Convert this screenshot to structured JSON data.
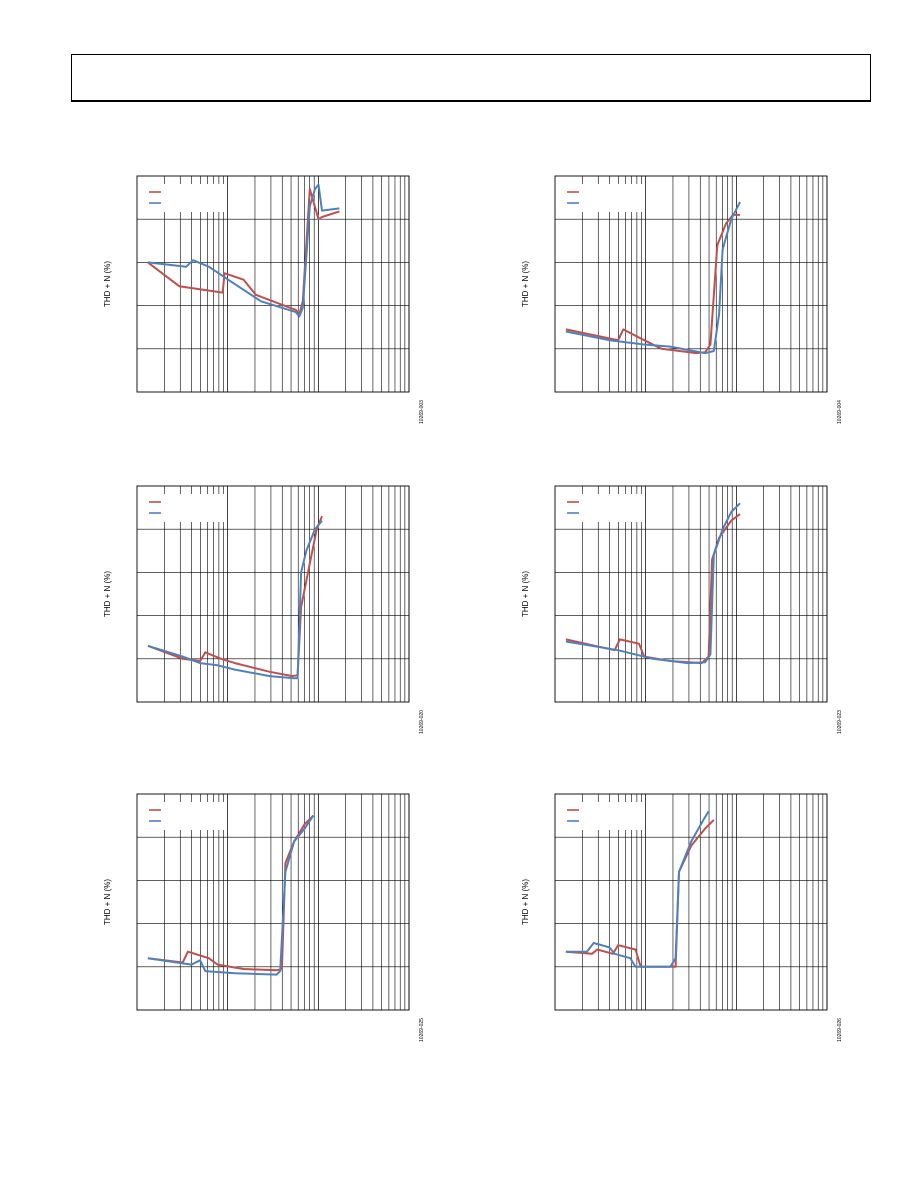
{
  "header": {
    "title": ""
  },
  "colors": {
    "red": "#c0504d",
    "blue": "#4f81bd",
    "grid": "#000000"
  },
  "chart_data": [
    {
      "type": "line",
      "ylabel": "THD + N (%)",
      "figure_id": "10269-003",
      "log_x": true,
      "x_decades": 3,
      "y_divisions": 5,
      "grid": true,
      "legend": "top-left",
      "series": [
        {
          "color": "red",
          "points": [
            [
              0.0,
              3.0
            ],
            [
              0.18,
              2.45
            ],
            [
              0.43,
              2.3
            ],
            [
              0.44,
              2.75
            ],
            [
              0.55,
              2.6
            ],
            [
              0.62,
              2.25
            ],
            [
              0.85,
              1.9
            ],
            [
              0.87,
              1.8
            ],
            [
              0.89,
              2.1
            ],
            [
              0.93,
              4.7
            ],
            [
              0.98,
              4.0
            ],
            [
              1.0,
              4.05
            ],
            [
              1.1,
              4.18
            ]
          ]
        },
        {
          "color": "blue",
          "points": [
            [
              0.0,
              3.0
            ],
            [
              0.22,
              2.9
            ],
            [
              0.26,
              3.05
            ],
            [
              0.35,
              2.9
            ],
            [
              0.48,
              2.55
            ],
            [
              0.65,
              2.1
            ],
            [
              0.85,
              1.85
            ],
            [
              0.87,
              1.75
            ],
            [
              0.89,
              1.95
            ],
            [
              0.93,
              4.3
            ],
            [
              0.96,
              4.7
            ],
            [
              0.98,
              4.8
            ],
            [
              1.0,
              4.2
            ],
            [
              1.1,
              4.25
            ]
          ]
        }
      ]
    },
    {
      "type": "line",
      "ylabel": "THD + N (%)",
      "figure_id": "10269-004",
      "log_x": true,
      "x_decades": 3,
      "y_divisions": 5,
      "grid": true,
      "legend": "top-left",
      "series": [
        {
          "color": "red",
          "points": [
            [
              0.0,
              1.45
            ],
            [
              0.3,
              1.2
            ],
            [
              0.33,
              1.45
            ],
            [
              0.45,
              1.2
            ],
            [
              0.55,
              1.0
            ],
            [
              0.75,
              0.9
            ],
            [
              0.8,
              0.92
            ],
            [
              0.83,
              1.1
            ],
            [
              0.87,
              3.4
            ],
            [
              0.92,
              3.9
            ],
            [
              0.96,
              4.1
            ],
            [
              1.0,
              4.1
            ]
          ]
        },
        {
          "color": "blue",
          "points": [
            [
              0.0,
              1.4
            ],
            [
              0.25,
              1.2
            ],
            [
              0.45,
              1.1
            ],
            [
              0.6,
              1.05
            ],
            [
              0.8,
              0.9
            ],
            [
              0.85,
              0.95
            ],
            [
              0.88,
              1.8
            ],
            [
              0.9,
              3.3
            ],
            [
              0.95,
              4.0
            ],
            [
              1.0,
              4.4
            ]
          ]
        }
      ]
    },
    {
      "type": "line",
      "ylabel": "THD + N (%)",
      "figure_id": "10269-020",
      "log_x": true,
      "x_decades": 3,
      "y_divisions": 5,
      "grid": true,
      "legend": "top-left",
      "series": [
        {
          "color": "red",
          "points": [
            [
              0.0,
              1.3
            ],
            [
              0.2,
              1.0
            ],
            [
              0.3,
              0.95
            ],
            [
              0.33,
              1.15
            ],
            [
              0.42,
              1.0
            ],
            [
              0.5,
              0.9
            ],
            [
              0.7,
              0.7
            ],
            [
              0.83,
              0.6
            ],
            [
              0.86,
              0.62
            ],
            [
              0.88,
              2.2
            ],
            [
              0.92,
              3.0
            ],
            [
              0.97,
              4.0
            ],
            [
              1.0,
              4.3
            ]
          ]
        },
        {
          "color": "blue",
          "points": [
            [
              0.0,
              1.3
            ],
            [
              0.2,
              1.05
            ],
            [
              0.3,
              0.9
            ],
            [
              0.4,
              0.85
            ],
            [
              0.5,
              0.75
            ],
            [
              0.7,
              0.6
            ],
            [
              0.84,
              0.55
            ],
            [
              0.86,
              0.55
            ],
            [
              0.88,
              3.0
            ],
            [
              0.91,
              3.5
            ],
            [
              0.96,
              4.0
            ],
            [
              1.0,
              4.2
            ]
          ]
        }
      ]
    },
    {
      "type": "line",
      "ylabel": "THD + N (%)",
      "figure_id": "10269-023",
      "log_x": true,
      "x_decades": 3,
      "y_divisions": 5,
      "grid": true,
      "legend": "top-left",
      "series": [
        {
          "color": "red",
          "points": [
            [
              0.0,
              1.45
            ],
            [
              0.28,
              1.2
            ],
            [
              0.31,
              1.45
            ],
            [
              0.42,
              1.35
            ],
            [
              0.45,
              1.05
            ],
            [
              0.6,
              0.95
            ],
            [
              0.78,
              0.9
            ],
            [
              0.82,
              1.05
            ],
            [
              0.84,
              3.3
            ],
            [
              0.88,
              3.8
            ],
            [
              0.95,
              4.2
            ],
            [
              1.0,
              4.35
            ]
          ]
        },
        {
          "color": "blue",
          "points": [
            [
              0.0,
              1.4
            ],
            [
              0.3,
              1.2
            ],
            [
              0.5,
              1.0
            ],
            [
              0.7,
              0.9
            ],
            [
              0.8,
              0.92
            ],
            [
              0.83,
              1.1
            ],
            [
              0.85,
              3.4
            ],
            [
              0.9,
              4.0
            ],
            [
              0.95,
              4.4
            ],
            [
              1.0,
              4.6
            ]
          ]
        }
      ]
    },
    {
      "type": "line",
      "ylabel": "THD + N (%)",
      "figure_id": "10269-025",
      "log_x": true,
      "x_decades": 3,
      "y_divisions": 5,
      "grid": true,
      "legend": "top-left",
      "series": [
        {
          "color": "red",
          "points": [
            [
              0.0,
              1.2
            ],
            [
              0.2,
              1.1
            ],
            [
              0.23,
              1.35
            ],
            [
              0.35,
              1.2
            ],
            [
              0.4,
              1.05
            ],
            [
              0.55,
              0.95
            ],
            [
              0.74,
              0.92
            ],
            [
              0.77,
              0.95
            ],
            [
              0.79,
              3.4
            ],
            [
              0.84,
              3.9
            ],
            [
              0.9,
              4.3
            ],
            [
              0.95,
              4.5
            ]
          ]
        },
        {
          "color": "blue",
          "points": [
            [
              0.0,
              1.2
            ],
            [
              0.25,
              1.05
            ],
            [
              0.3,
              1.15
            ],
            [
              0.33,
              0.9
            ],
            [
              0.5,
              0.85
            ],
            [
              0.74,
              0.82
            ],
            [
              0.76,
              0.9
            ],
            [
              0.79,
              3.2
            ],
            [
              0.84,
              3.9
            ],
            [
              0.9,
              4.2
            ],
            [
              0.95,
              4.5
            ]
          ]
        }
      ]
    },
    {
      "type": "line",
      "ylabel": "THD + N (%)",
      "figure_id": "10269-026",
      "log_x": true,
      "x_decades": 3,
      "y_divisions": 5,
      "grid": true,
      "legend": "top-left",
      "series": [
        {
          "color": "red",
          "points": [
            [
              0.0,
              1.35
            ],
            [
              0.15,
              1.3
            ],
            [
              0.18,
              1.4
            ],
            [
              0.27,
              1.3
            ],
            [
              0.3,
              1.5
            ],
            [
              0.4,
              1.4
            ],
            [
              0.43,
              1.0
            ],
            [
              0.57,
              1.0
            ],
            [
              0.63,
              1.0
            ],
            [
              0.65,
              3.2
            ],
            [
              0.72,
              3.8
            ],
            [
              0.8,
              4.2
            ],
            [
              0.85,
              4.4
            ]
          ]
        },
        {
          "color": "blue",
          "points": [
            [
              0.0,
              1.35
            ],
            [
              0.12,
              1.35
            ],
            [
              0.16,
              1.55
            ],
            [
              0.25,
              1.45
            ],
            [
              0.28,
              1.3
            ],
            [
              0.37,
              1.2
            ],
            [
              0.4,
              1.0
            ],
            [
              0.6,
              1.0
            ],
            [
              0.63,
              1.2
            ],
            [
              0.65,
              3.2
            ],
            [
              0.72,
              3.9
            ],
            [
              0.79,
              4.4
            ],
            [
              0.82,
              4.6
            ]
          ]
        }
      ]
    }
  ]
}
